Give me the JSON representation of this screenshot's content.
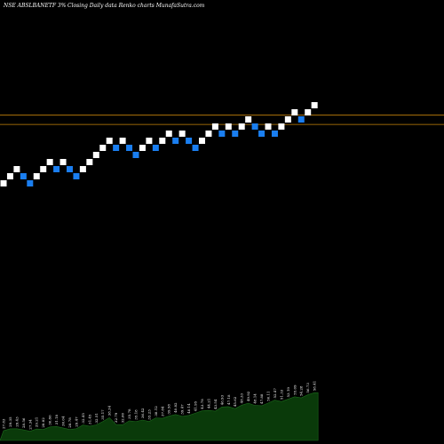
{
  "header": {
    "symbol": "NSE ABSLBANETF 3%",
    "title_rest": "Closing Daily data  Renko  charts MunafaSutra.com"
  },
  "colors": {
    "background": "#000000",
    "up_brick": "#ffffff",
    "down_brick": "#1a7ef0",
    "level_line": "#c8860a",
    "volume_fill": "#0a3a0a",
    "volume_stroke": "#1c6b1c"
  },
  "chart_data": {
    "type": "renko",
    "directions": [
      1,
      1,
      1,
      -1,
      -1,
      1,
      1,
      1,
      -1,
      1,
      -1,
      -1,
      1,
      1,
      1,
      1,
      1,
      -1,
      1,
      -1,
      -1,
      1,
      1,
      -1,
      1,
      1,
      -1,
      1,
      -1,
      -1,
      1,
      1,
      1,
      -1,
      1,
      -1,
      1,
      1,
      -1,
      -1,
      1,
      -1,
      1,
      1,
      1,
      -1,
      1,
      1
    ],
    "brick_levels": [
      0,
      1,
      2,
      1,
      0,
      1,
      2,
      3,
      2,
      3,
      2,
      1,
      2,
      3,
      4,
      5,
      6,
      5,
      6,
      5,
      4,
      5,
      6,
      5,
      6,
      7,
      6,
      7,
      6,
      5,
      6,
      7,
      8,
      7,
      8,
      7,
      8,
      9,
      8,
      7,
      8,
      7,
      8,
      9,
      10,
      9,
      10,
      11
    ],
    "volume_labels": [
      "27.83",
      "29.35",
      "29.43",
      "28.56",
      "27.34",
      "29.21",
      "28.82",
      "30.86",
      "31.18",
      "30.04",
      "28.78",
      "29.47",
      "32.45",
      "31.45",
      "32.51",
      "35.17",
      "38.34",
      "32.79",
      "32.60",
      "35.78",
      "35.18",
      "36.42",
      "35.23",
      "38.12",
      "37.84",
      "39.58",
      "40.82",
      "39.47",
      "40.14",
      "41.95",
      "43.78",
      "44.21",
      "43.54",
      "46.93",
      "47.18",
      "45.62",
      "48.33",
      "49.92",
      "48.14",
      "47.88",
      "50.11",
      "52.47",
      "51.33",
      "53.19",
      "55.09",
      "54.28",
      "56.73",
      "58.41"
    ],
    "volume_values": [
      27.83,
      29.35,
      29.43,
      28.56,
      27.34,
      29.21,
      28.82,
      30.86,
      31.18,
      30.04,
      28.78,
      29.47,
      32.45,
      31.45,
      32.51,
      35.17,
      38.34,
      32.79,
      32.6,
      35.78,
      35.18,
      36.42,
      35.23,
      38.12,
      37.84,
      39.58,
      40.82,
      39.47,
      40.14,
      41.95,
      43.78,
      44.21,
      43.54,
      46.93,
      47.18,
      45.62,
      48.33,
      49.92,
      48.14,
      47.88,
      50.11,
      52.47,
      51.33,
      53.19,
      55.09,
      54.28,
      56.73,
      58.41
    ],
    "level_lines": [
      8.3,
      9.6
    ]
  }
}
